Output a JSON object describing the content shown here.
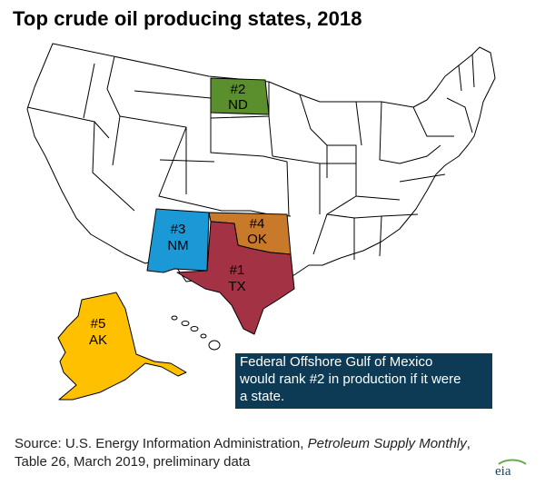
{
  "title": "Top crude oil producing states, 2018",
  "colors": {
    "tx": "#a23244",
    "nd": "#5b8f2d",
    "nm": "#1b99d6",
    "ok": "#c87a2a",
    "ak": "#ffc000",
    "note_bg": "#0d3b55",
    "border": "#000000"
  },
  "states": [
    {
      "rank": "#1",
      "abbr": "TX"
    },
    {
      "rank": "#2",
      "abbr": "ND"
    },
    {
      "rank": "#3",
      "abbr": "NM"
    },
    {
      "rank": "#4",
      "abbr": "OK"
    },
    {
      "rank": "#5",
      "abbr": "AK"
    }
  ],
  "note": {
    "line1": "Federal Offshore Gulf of Mexico",
    "line2": "would rank #2 in production if it were",
    "line3": "a state."
  },
  "source": {
    "prefix": "Source: U.S. Energy Information Administration,",
    "publication": "Petroleum Supply Monthly",
    "suffix": ",",
    "line2": "Table 26, March 2019, preliminary data"
  },
  "logo": "eia"
}
